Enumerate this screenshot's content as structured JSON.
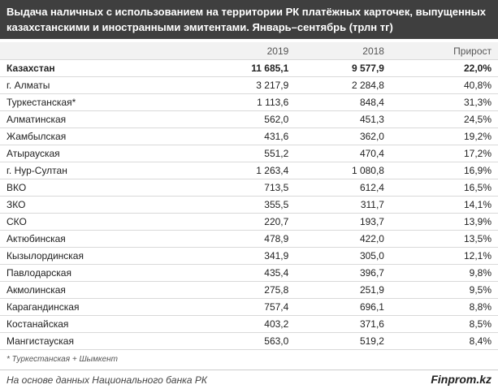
{
  "header": {
    "title": "Выдача наличных с использованием на территории РК платёжных карточек, выпущенных казахстанскими и иностранными эмитентами. Январь–сентябрь  (трлн тг)"
  },
  "table": {
    "columns": [
      "",
      "2019",
      "2018",
      "Прирост"
    ],
    "rows": [
      [
        "Казахстан",
        "11 685,1",
        "9 577,9",
        "22,0%"
      ],
      [
        "г. Алматы",
        "3 217,9",
        "2 284,8",
        "40,8%"
      ],
      [
        "Туркестанская*",
        "1 113,6",
        "848,4",
        "31,3%"
      ],
      [
        "Алматинская",
        "562,0",
        "451,3",
        "24,5%"
      ],
      [
        "Жамбылская",
        "431,6",
        "362,0",
        "19,2%"
      ],
      [
        "Атырауская",
        "551,2",
        "470,4",
        "17,2%"
      ],
      [
        "г. Нур-Султан",
        "1 263,4",
        "1 080,8",
        "16,9%"
      ],
      [
        "ВКО",
        "713,5",
        "612,4",
        "16,5%"
      ],
      [
        "ЗКО",
        "355,5",
        "311,7",
        "14,1%"
      ],
      [
        "СКО",
        "220,7",
        "193,7",
        "13,9%"
      ],
      [
        "Актюбинская",
        "478,9",
        "422,0",
        "13,5%"
      ],
      [
        "Кызылординская",
        "341,9",
        "305,0",
        "12,1%"
      ],
      [
        "Павлодарская",
        "435,4",
        "396,7",
        "9,8%"
      ],
      [
        "Акмолинская",
        "275,8",
        "251,9",
        "9,5%"
      ],
      [
        "Карагандинская",
        "757,4",
        "696,1",
        "8,8%"
      ],
      [
        "Костанайская",
        "403,2",
        "371,6",
        "8,5%"
      ],
      [
        "Мангистауская",
        "563,0",
        "519,2",
        "8,4%"
      ]
    ]
  },
  "footnote": "* Туркестанская + Шымкент",
  "footer": {
    "source": "На основе данных Национального банка РК",
    "brand": "Finprom.kz"
  }
}
